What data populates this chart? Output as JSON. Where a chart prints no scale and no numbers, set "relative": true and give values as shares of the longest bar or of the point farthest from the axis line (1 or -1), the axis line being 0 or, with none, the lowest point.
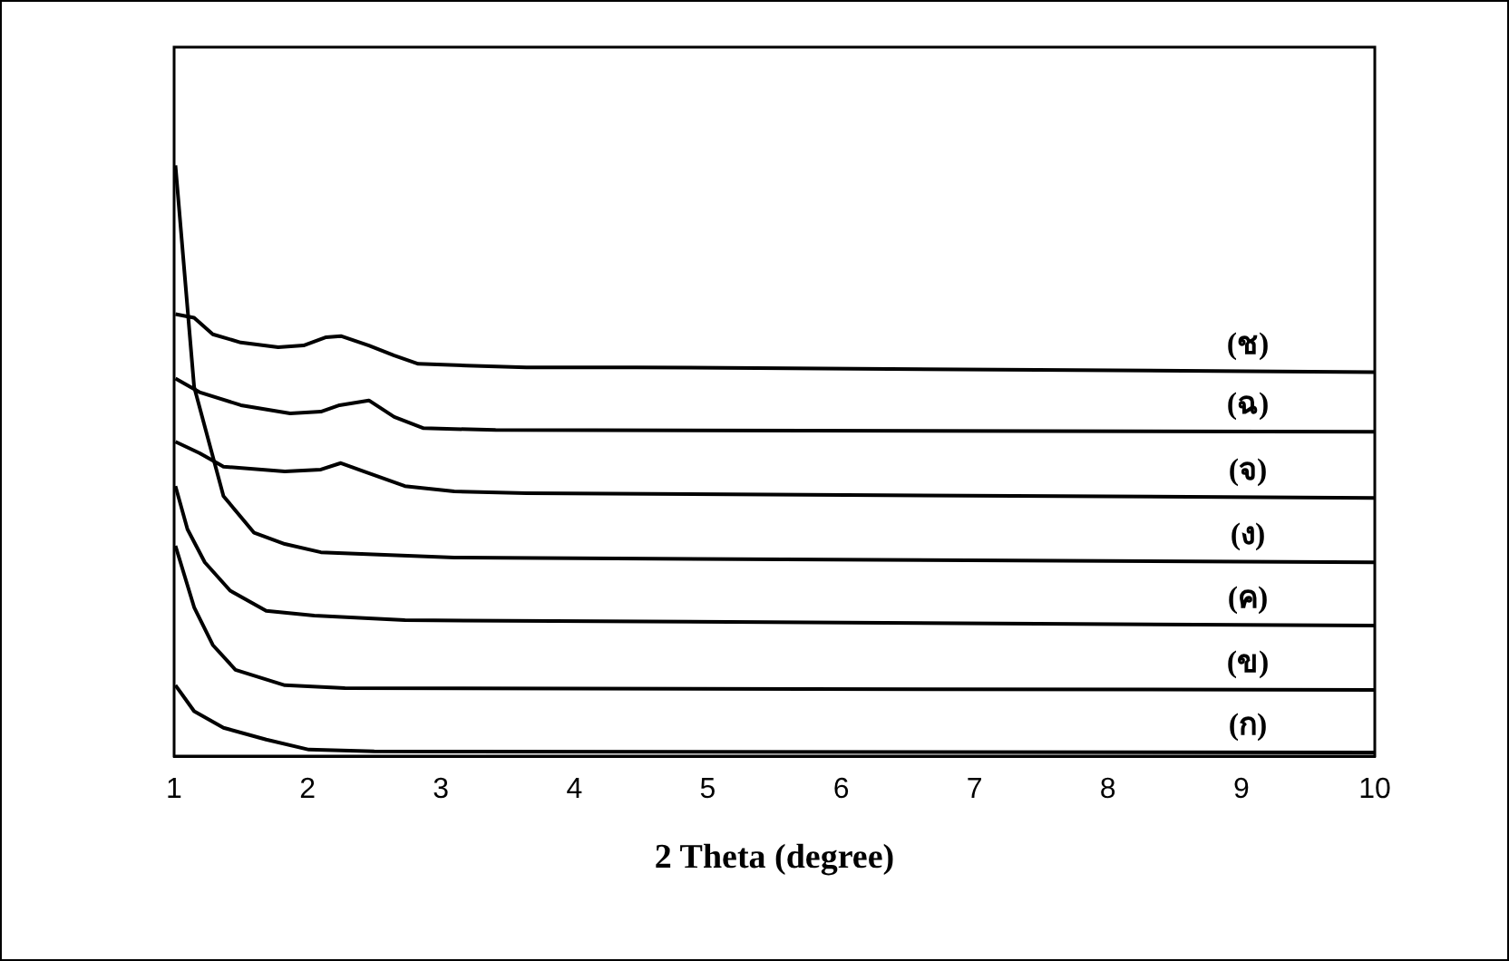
{
  "chart_data": {
    "type": "line",
    "relative": true,
    "xlabel": "2 Theta (degree)",
    "xlim": [
      1,
      10
    ],
    "xticks": [
      1,
      2,
      3,
      4,
      5,
      6,
      7,
      8,
      9,
      10
    ],
    "grid": false,
    "legend": false,
    "marker": "none",
    "line_style": "solid",
    "series": [
      {
        "name": "(ก)",
        "color": "#000000",
        "x": [
          1.01,
          1.15,
          1.37,
          1.69,
          2.01,
          2.5,
          10
        ],
        "values": [
          0.12,
          0.076,
          0.048,
          0.028,
          0.011,
          0.008,
          0.006
        ]
      },
      {
        "name": "(ข)",
        "color": "#000000",
        "x": [
          1.01,
          1.15,
          1.29,
          1.46,
          1.83,
          2.28,
          10
        ],
        "values": [
          0.356,
          0.252,
          0.188,
          0.146,
          0.12,
          0.115,
          0.112
        ]
      },
      {
        "name": "(ค)",
        "color": "#000000",
        "x": [
          1.01,
          1.1,
          1.23,
          1.42,
          1.69,
          2.05,
          2.73,
          10
        ],
        "values": [
          0.457,
          0.384,
          0.328,
          0.28,
          0.246,
          0.238,
          0.23,
          0.221
        ]
      },
      {
        "name": "(ง)",
        "color": "#000000",
        "x": [
          1.01,
          1.15,
          1.37,
          1.6,
          1.83,
          2.1,
          3.1,
          10
        ],
        "values": [
          1.0,
          0.625,
          0.44,
          0.378,
          0.359,
          0.345,
          0.336,
          0.328
        ]
      },
      {
        "name": "(จ)",
        "color": "#000000",
        "x": [
          1.01,
          1.19,
          1.37,
          1.83,
          2.1,
          2.25,
          2.42,
          2.73,
          3.1,
          3.64,
          10
        ],
        "values": [
          0.532,
          0.513,
          0.49,
          0.482,
          0.485,
          0.496,
          0.482,
          0.457,
          0.448,
          0.445,
          0.437
        ]
      },
      {
        "name": "(ฉ)",
        "color": "#000000",
        "x": [
          1.01,
          1.19,
          1.5,
          1.87,
          2.1,
          2.24,
          2.46,
          2.65,
          2.87,
          3.41,
          10
        ],
        "values": [
          0.639,
          0.616,
          0.594,
          0.58,
          0.583,
          0.594,
          0.602,
          0.574,
          0.555,
          0.552,
          0.549
        ]
      },
      {
        "name": "(ช)",
        "color": "#000000",
        "x": [
          1.01,
          1.15,
          1.29,
          1.5,
          1.78,
          1.97,
          2.14,
          2.25,
          2.46,
          2.65,
          2.83,
          3.19,
          3.64,
          4.46,
          10
        ],
        "values": [
          0.748,
          0.742,
          0.714,
          0.7,
          0.692,
          0.695,
          0.709,
          0.711,
          0.695,
          0.678,
          0.664,
          0.661,
          0.658,
          0.658,
          0.65
        ]
      }
    ]
  }
}
